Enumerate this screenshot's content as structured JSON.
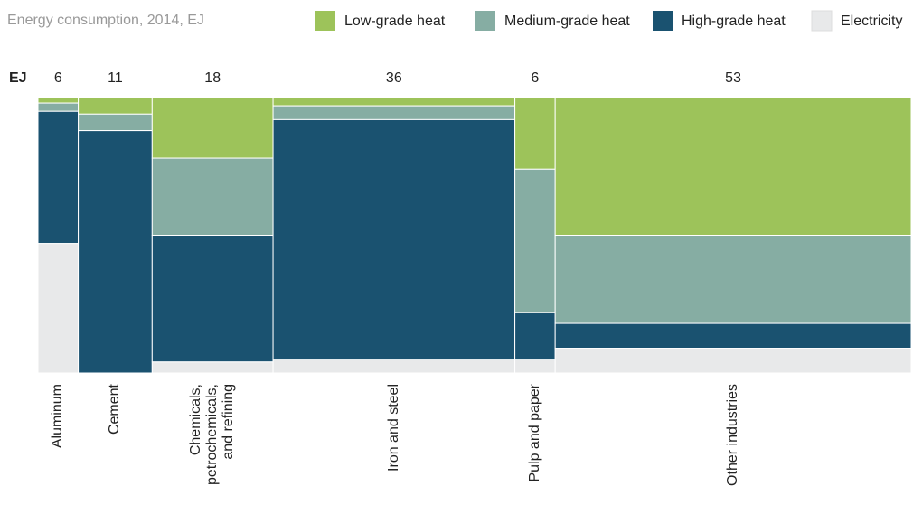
{
  "chart_data": {
    "type": "mosaic",
    "title": "Energy consumption, 2014, EJ",
    "width_label": "EJ",
    "categories": [
      "Aluminum",
      "Cement",
      "Chemicals, petrochemicals, and refining",
      "Iron and steel",
      "Pulp and paper",
      "Other industries"
    ],
    "widths": [
      6,
      11,
      18,
      36,
      6,
      53
    ],
    "series": [
      {
        "name": "Low-grade heat",
        "color": "#9dc35a",
        "values": [
          2,
          6,
          22,
          3,
          26,
          50
        ]
      },
      {
        "name": "Medium-grade heat",
        "color": "#86ada3",
        "values": [
          3,
          6,
          28,
          5,
          52,
          32
        ]
      },
      {
        "name": "High-grade heat",
        "color": "#1a5270",
        "values": [
          48,
          88,
          46,
          87,
          17,
          9
        ]
      },
      {
        "name": "Electricity",
        "color": "#e8e9ea",
        "values": [
          47,
          0,
          4,
          5,
          5,
          9
        ]
      }
    ]
  }
}
